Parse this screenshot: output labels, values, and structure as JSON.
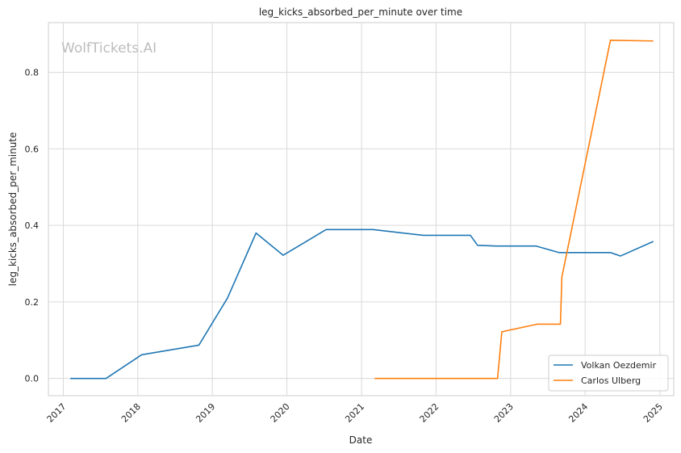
{
  "watermark": "WolfTickets.AI",
  "chart_data": {
    "type": "line",
    "title": "leg_kicks_absorbed_per_minute over time",
    "xlabel": "Date",
    "ylabel": "leg_kicks_absorbed_per_minute",
    "x_ticks": [
      "2017",
      "2018",
      "2019",
      "2020",
      "2021",
      "2022",
      "2023",
      "2024",
      "2025"
    ],
    "y_ticks": [
      "0.0",
      "0.2",
      "0.4",
      "0.6",
      "0.8"
    ],
    "ylim": [
      -0.045,
      0.93
    ],
    "xlim": [
      "2016-10-20",
      "2025-03-10"
    ],
    "grid": true,
    "legend_position": "lower-right",
    "series": [
      {
        "name": "Volkan Oezdemir",
        "color": "#1f77b4",
        "points": [
          [
            "2017-02-04",
            0.0
          ],
          [
            "2017-07-29",
            0.0
          ],
          [
            "2018-01-20",
            0.062
          ],
          [
            "2018-10-27",
            0.087
          ],
          [
            "2019-03-16",
            0.21
          ],
          [
            "2019-08-03",
            0.38
          ],
          [
            "2019-12-14",
            0.322
          ],
          [
            "2020-07-11",
            0.389
          ],
          [
            "2021-02-27",
            0.389
          ],
          [
            "2021-10-30",
            0.374
          ],
          [
            "2022-06-18",
            0.374
          ],
          [
            "2022-07-23",
            0.348
          ],
          [
            "2022-10-22",
            0.346
          ],
          [
            "2023-05-06",
            0.346
          ],
          [
            "2023-08-26",
            0.329
          ],
          [
            "2024-05-04",
            0.329
          ],
          [
            "2024-06-22",
            0.32
          ],
          [
            "2024-11-30",
            0.358
          ]
        ]
      },
      {
        "name": "Carlos Ulberg",
        "color": "#ff7f0e",
        "points": [
          [
            "2021-03-06",
            0.0
          ],
          [
            "2022-10-29",
            0.0
          ],
          [
            "2022-11-19",
            0.122
          ],
          [
            "2023-05-13",
            0.142
          ],
          [
            "2023-09-02",
            0.142
          ],
          [
            "2023-09-09",
            0.265
          ],
          [
            "2024-05-04",
            0.884
          ],
          [
            "2024-11-30",
            0.882
          ]
        ]
      }
    ]
  }
}
